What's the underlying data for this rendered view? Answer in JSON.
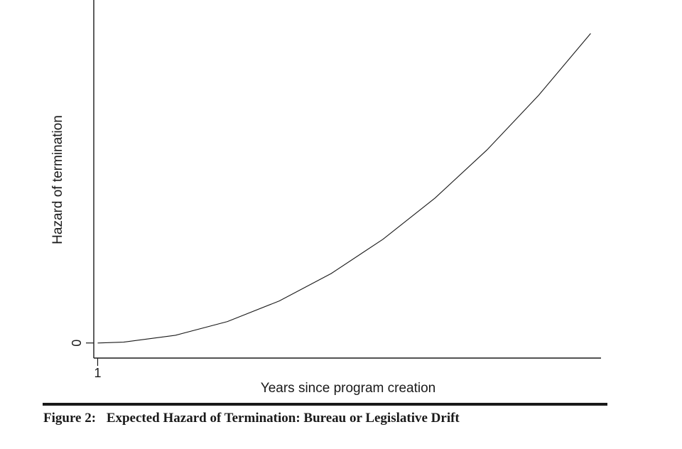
{
  "chart_data": {
    "type": "line",
    "xlabel": "Years since program creation",
    "ylabel": "Hazard of termination",
    "x_ticks": [
      {
        "value": 1,
        "label": "1"
      }
    ],
    "y_ticks": [
      {
        "value": 0,
        "label": "0"
      }
    ],
    "grid": false,
    "legend": "none",
    "series": [
      {
        "x": [
          1,
          2,
          4,
          6,
          8,
          10,
          12,
          14,
          16,
          18,
          20
        ],
        "y": [
          0,
          0.0025,
          0.0225,
          0.0625,
          0.1225,
          0.2025,
          0.3025,
          0.4225,
          0.5625,
          0.7225,
          0.9025
        ]
      }
    ],
    "xlim": [
      0.85,
      20.4
    ],
    "ylim": [
      -0.044,
      1.0
    ],
    "line_color": "#1a1a1a"
  },
  "caption": {
    "label": "Figure 2:",
    "text": "Expected Hazard of Termination: Bureau or Legislative Drift"
  }
}
